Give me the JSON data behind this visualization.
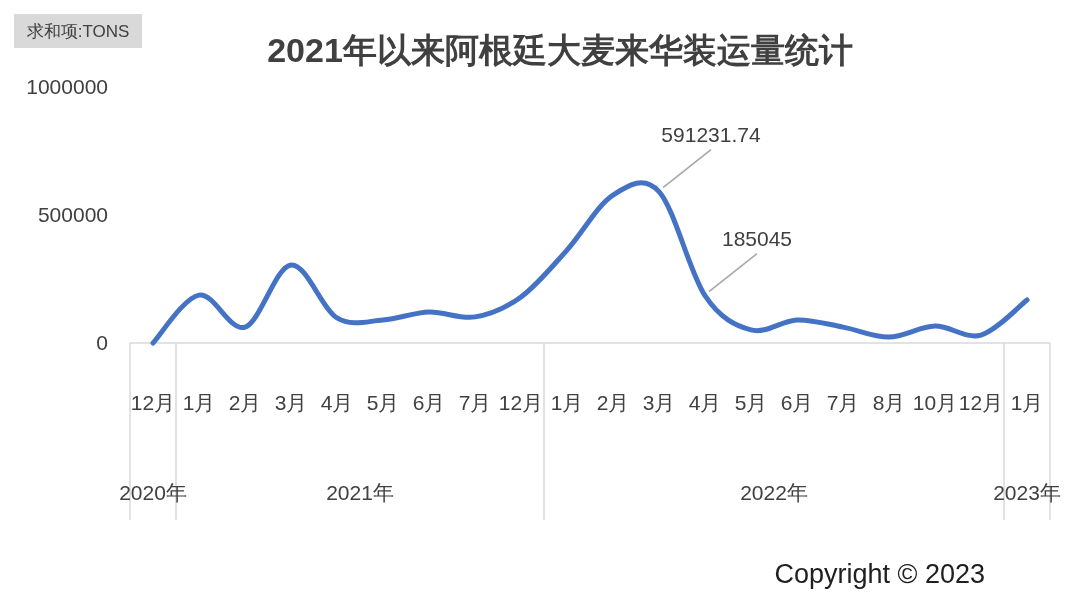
{
  "chart_data": {
    "type": "line",
    "title": "2021年以来阿根廷大麦来华装运量统计",
    "ylabel": "求和项:TONS",
    "categories": [
      "12月",
      "1月",
      "2月",
      "3月",
      "4月",
      "5月",
      "6月",
      "7月",
      "12月",
      "1月",
      "2月",
      "3月",
      "4月",
      "5月",
      "6月",
      "7月",
      "8月",
      "10月",
      "12月",
      "1月"
    ],
    "series": [
      {
        "color": "#4472c4",
        "values": [
          0,
          187000,
          62000,
          305000,
          98000,
          90000,
          121000,
          102000,
          180000,
          363000,
          578000,
          591231.74,
          185045,
          51000,
          90000,
          62000,
          23000,
          66000,
          31000,
          168000
        ],
        "value_labels": [
          null,
          null,
          null,
          null,
          null,
          null,
          null,
          null,
          null,
          null,
          null,
          "591231.74",
          "185045",
          null,
          null,
          null,
          null,
          null,
          null,
          null
        ]
      }
    ],
    "ylim": [
      0,
      1000000
    ],
    "yticks": [
      0,
      500000,
      1000000
    ],
    "grid": false,
    "marker": "none",
    "line_style": "solid",
    "annotations": [
      "2020年",
      "2021年",
      "2022年",
      "2023年",
      "Copyright © 2023"
    ]
  }
}
